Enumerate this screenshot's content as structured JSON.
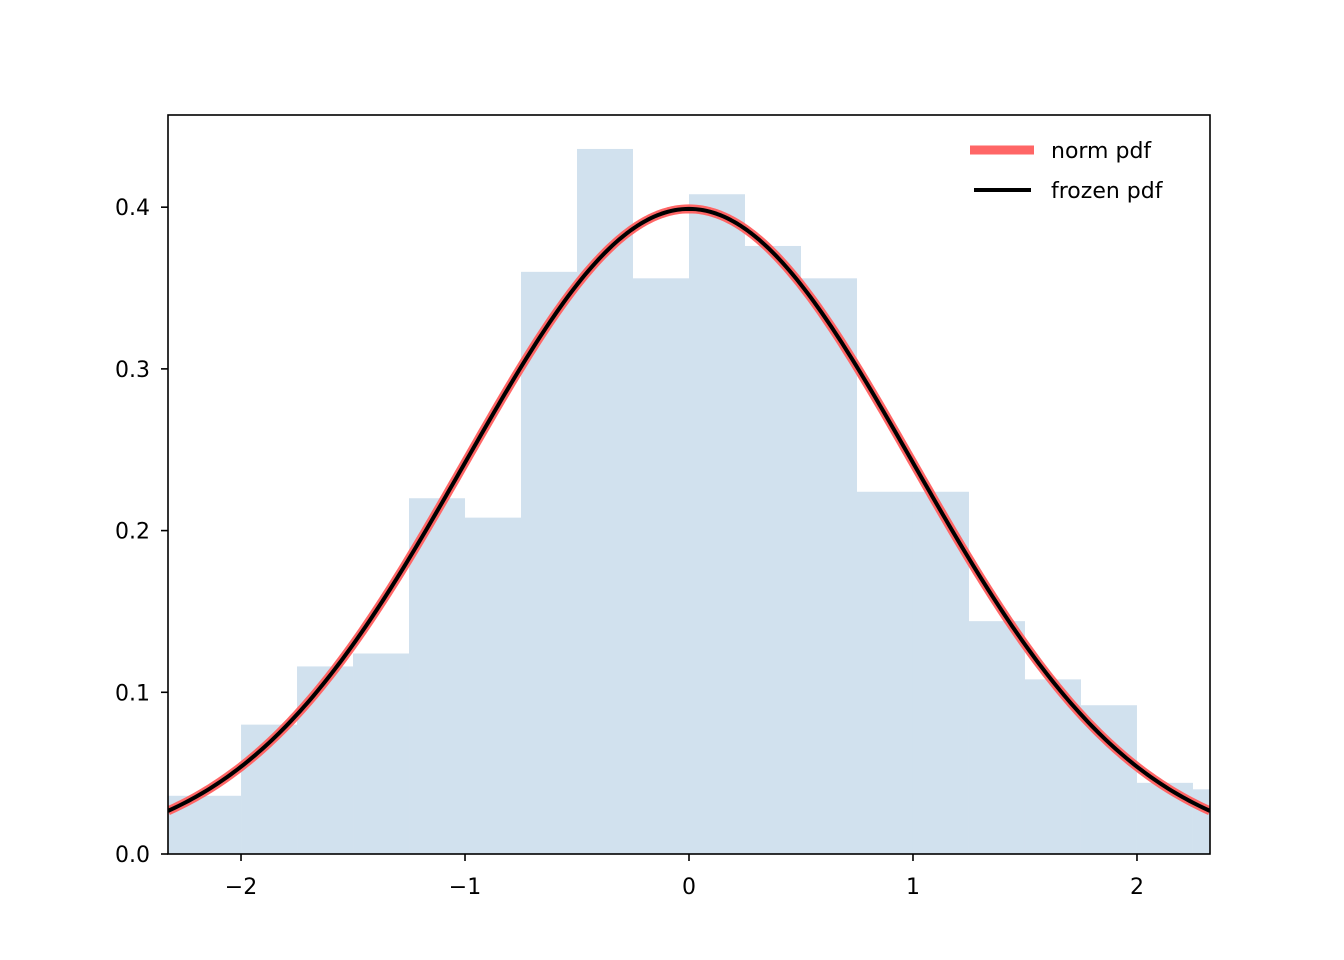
{
  "chart_data": {
    "type": "histogram+line",
    "xlim": [
      -2.326,
      2.326
    ],
    "ylim": [
      0.0,
      0.457
    ],
    "xticks": [
      {
        "value": -2,
        "label": "−2"
      },
      {
        "value": -1,
        "label": "−1"
      },
      {
        "value": 0,
        "label": "0"
      },
      {
        "value": 1,
        "label": "1"
      },
      {
        "value": 2,
        "label": "2"
      }
    ],
    "yticks": [
      {
        "value": 0.0,
        "label": "0.0"
      },
      {
        "value": 0.1,
        "label": "0.1"
      },
      {
        "value": 0.2,
        "label": "0.2"
      },
      {
        "value": 0.3,
        "label": "0.3"
      },
      {
        "value": 0.4,
        "label": "0.4"
      }
    ],
    "histogram": {
      "color": "#d1e1ee",
      "bin_edges": [
        -2.5,
        -2.0,
        -1.75,
        -1.5,
        -1.25,
        -1.0,
        -0.75,
        -0.5,
        -0.25,
        0.0,
        0.25,
        0.5,
        0.75,
        1.0,
        1.25,
        1.5,
        1.75,
        2.0,
        2.25,
        2.5
      ],
      "densities": [
        0.036,
        0.08,
        0.116,
        0.124,
        0.22,
        0.208,
        0.36,
        0.436,
        0.356,
        0.408,
        0.376,
        0.356,
        0.224,
        0.224,
        0.144,
        0.108,
        0.092,
        0.044,
        0.04
      ]
    },
    "series": [
      {
        "name": "norm pdf",
        "color": "#ff6666",
        "function": "normal_pdf",
        "mean": 0,
        "std": 1
      },
      {
        "name": "frozen pdf",
        "color": "#000000",
        "function": "normal_pdf",
        "mean": 0,
        "std": 1
      }
    ],
    "legend_position": "top-right",
    "grid": false
  }
}
